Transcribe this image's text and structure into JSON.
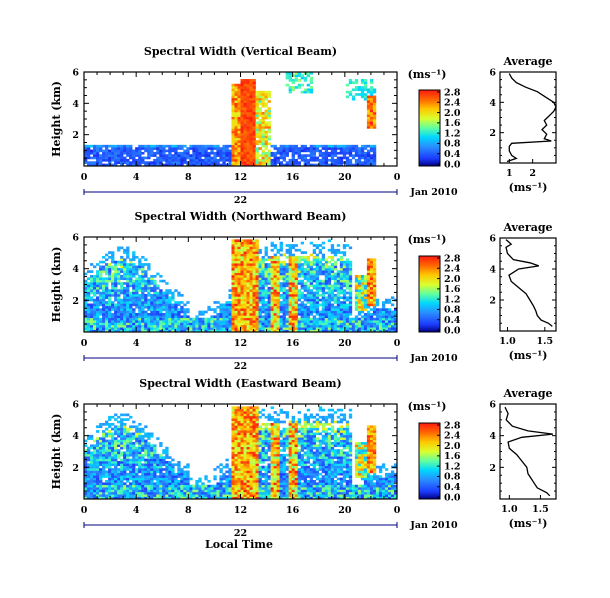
{
  "chart_data": [
    {
      "type": "heatmap",
      "title": "Spectral Width (Vertical Beam)",
      "ylabel": "Height (km)",
      "x_ticks": [
        "0",
        "4",
        "8",
        "12",
        "16",
        "20",
        "0"
      ],
      "y_ticks": [
        "2",
        "4",
        "6"
      ],
      "xlim": [
        0,
        24
      ],
      "ylim": [
        0,
        6
      ],
      "date_labels": [
        "22",
        "Jan 2010"
      ],
      "colorbar": {
        "unit": "(ms⁻¹)",
        "ticks": [
          "2.8",
          "2.4",
          "2.0",
          "1.6",
          "1.2",
          "0.8",
          "0.4",
          "0.0"
        ],
        "range": [
          0,
          2.8
        ]
      },
      "average_profile": {
        "title": "Average",
        "xlabel": "(ms⁻¹)",
        "x_ticks": [
          "1",
          "2"
        ],
        "y_ticks": [
          "2",
          "4",
          "6"
        ],
        "xlim": [
          0.6,
          3.0
        ],
        "ylim": [
          0,
          6
        ],
        "points": [
          [
            0.9,
            0.1
          ],
          [
            1.3,
            0.3
          ],
          [
            1.1,
            0.5
          ],
          [
            1.0,
            0.8
          ],
          [
            1.0,
            1.1
          ],
          [
            1.1,
            1.3
          ],
          [
            2.8,
            1.45
          ],
          [
            2.5,
            1.6
          ],
          [
            2.6,
            1.9
          ],
          [
            2.4,
            2.2
          ],
          [
            2.6,
            2.5
          ],
          [
            2.5,
            2.8
          ],
          [
            2.7,
            3.1
          ],
          [
            2.9,
            3.4
          ],
          [
            3.0,
            3.7
          ],
          [
            2.9,
            4.0
          ],
          [
            2.6,
            4.3
          ],
          [
            2.2,
            4.7
          ],
          [
            1.7,
            5.0
          ],
          [
            1.3,
            5.3
          ],
          [
            1.1,
            5.6
          ],
          [
            1.0,
            5.9
          ]
        ]
      }
    },
    {
      "type": "heatmap",
      "title": "Spectral Width (Northward Beam)",
      "ylabel": "Height (km)",
      "x_ticks": [
        "0",
        "4",
        "8",
        "12",
        "16",
        "20",
        "0"
      ],
      "y_ticks": [
        "2",
        "4",
        "6"
      ],
      "xlim": [
        0,
        24
      ],
      "ylim": [
        0,
        6
      ],
      "date_labels": [
        "22",
        "Jan 2010"
      ],
      "colorbar": {
        "unit": "(ms⁻¹)",
        "ticks": [
          "2.8",
          "2.4",
          "2.0",
          "1.6",
          "1.2",
          "0.8",
          "0.4",
          "0.0"
        ],
        "range": [
          0,
          2.8
        ]
      },
      "average_profile": {
        "title": "Average",
        "xlabel": "(ms⁻¹)",
        "x_ticks": [
          "1.0",
          "1.5"
        ],
        "y_ticks": [
          "2",
          "4",
          "6"
        ],
        "xlim": [
          0.9,
          1.65
        ],
        "ylim": [
          0,
          6
        ],
        "points": [
          [
            1.6,
            0.3
          ],
          [
            1.55,
            0.5
          ],
          [
            1.45,
            0.7
          ],
          [
            1.4,
            1.0
          ],
          [
            1.38,
            1.3
          ],
          [
            1.35,
            1.6
          ],
          [
            1.3,
            2.0
          ],
          [
            1.25,
            2.4
          ],
          [
            1.15,
            2.8
          ],
          [
            1.05,
            3.2
          ],
          [
            1.02,
            3.6
          ],
          [
            1.15,
            4.0
          ],
          [
            1.42,
            4.2
          ],
          [
            1.3,
            4.4
          ],
          [
            1.08,
            4.6
          ],
          [
            1.0,
            5.0
          ],
          [
            0.98,
            5.4
          ],
          [
            1.05,
            5.6
          ],
          [
            0.98,
            5.9
          ]
        ]
      }
    },
    {
      "type": "heatmap",
      "title": "Spectral Width (Eastward Beam)",
      "ylabel": "Height (km)",
      "xlabel": "Local Time",
      "x_ticks": [
        "0",
        "4",
        "8",
        "12",
        "16",
        "20",
        "0"
      ],
      "y_ticks": [
        "2",
        "4",
        "6"
      ],
      "xlim": [
        0,
        24
      ],
      "ylim": [
        0,
        6
      ],
      "date_labels": [
        "22",
        "Jan 2010"
      ],
      "colorbar": {
        "unit": "(ms⁻¹)",
        "ticks": [
          "2.8",
          "2.4",
          "2.0",
          "1.6",
          "1.2",
          "0.8",
          "0.4",
          "0.0"
        ],
        "range": [
          0,
          2.8
        ]
      },
      "average_profile": {
        "title": "Average",
        "xlabel": "(ms⁻¹)",
        "x_ticks": [
          "1.0",
          "1.5"
        ],
        "y_ticks": [
          "2",
          "4",
          "6"
        ],
        "xlim": [
          0.85,
          1.75
        ],
        "ylim": [
          0,
          6
        ],
        "points": [
          [
            1.65,
            0.2
          ],
          [
            1.6,
            0.4
          ],
          [
            1.45,
            0.7
          ],
          [
            1.4,
            1.0
          ],
          [
            1.35,
            1.3
          ],
          [
            1.3,
            1.6
          ],
          [
            1.28,
            2.0
          ],
          [
            1.2,
            2.4
          ],
          [
            1.12,
            2.8
          ],
          [
            1.0,
            3.2
          ],
          [
            0.98,
            3.6
          ],
          [
            1.2,
            3.9
          ],
          [
            1.7,
            4.1
          ],
          [
            1.3,
            4.3
          ],
          [
            1.05,
            4.6
          ],
          [
            0.95,
            5.0
          ],
          [
            0.98,
            5.4
          ],
          [
            0.93,
            5.8
          ]
        ]
      }
    }
  ],
  "colors": {
    "missing": "#ffffff",
    "frame": "#000000",
    "date_line": "#000080"
  }
}
